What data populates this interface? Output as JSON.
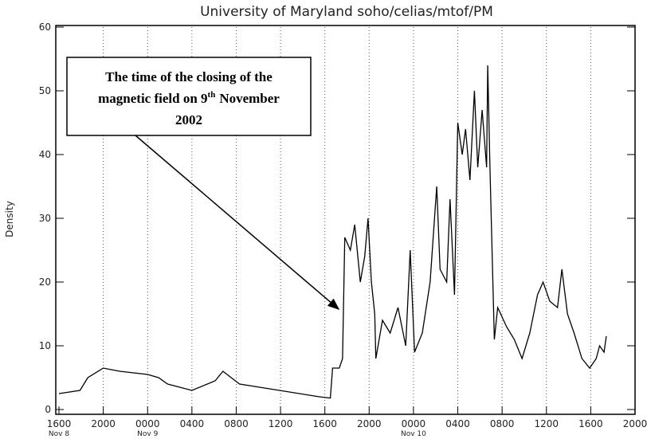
{
  "chart_data": {
    "type": "line",
    "title": "University of Maryland  soho/celias/mtof/PM",
    "y_label": "Density",
    "annotation": {
      "lines": [
        "The time of the closing of the",
        "magnetic field on 9",
        "November",
        "2002"
      ],
      "superscript": "th"
    },
    "color": "#000000",
    "grid": true,
    "xlim": [
      0,
      52
    ],
    "ylim": [
      0,
      60
    ],
    "yticks": [
      0,
      10,
      20,
      30,
      40,
      50,
      60
    ],
    "xticks": [
      {
        "value": 0,
        "label": "1600",
        "date": "Nov 8"
      },
      {
        "value": 4,
        "label": "2000"
      },
      {
        "value": 8,
        "label": "0000",
        "date": "Nov 9"
      },
      {
        "value": 12,
        "label": "0400"
      },
      {
        "value": 16,
        "label": "0800"
      },
      {
        "value": 20,
        "label": "1200"
      },
      {
        "value": 24,
        "label": "1600"
      },
      {
        "value": 28,
        "label": "2000"
      },
      {
        "value": 32,
        "label": "0000",
        "date": "Nov 10"
      },
      {
        "value": 36,
        "label": "0400"
      },
      {
        "value": 40,
        "label": "0800"
      },
      {
        "value": 44,
        "label": "1200"
      },
      {
        "value": 48,
        "label": "1600"
      },
      {
        "value": 52,
        "label": "2000"
      }
    ],
    "x": [
      0,
      1.9,
      2.6,
      4,
      5.5,
      8,
      9,
      9.8,
      12,
      14.1,
      14.8,
      16.3,
      19.9,
      23.5,
      24.5,
      24.7,
      25.3,
      25.6,
      25.8,
      26.3,
      26.7,
      27.2,
      27.6,
      27.9,
      28.2,
      28.5,
      28.6,
      29.2,
      29.9,
      30.6,
      31.3,
      31.7,
      32.1,
      32.8,
      33.5,
      34.1,
      34.4,
      35,
      35.3,
      35.7,
      36,
      36.4,
      36.7,
      37.1,
      37.5,
      37.8,
      38.2,
      38.6,
      38.7,
      38.9,
      39.3,
      39.6,
      40.4,
      41.1,
      41.8,
      42.5,
      43.2,
      43.7,
      44.3,
      45,
      45.4,
      45.9,
      46.5,
      47.2,
      47.9,
      48.5,
      48.8,
      49.2,
      49.4
    ],
    "values": [
      2.5,
      3,
      5,
      6.5,
      6,
      5.5,
      5,
      4,
      3,
      4.5,
      6,
      4,
      3,
      2,
      1.8,
      6.5,
      6.5,
      8,
      27,
      25,
      29,
      20,
      24,
      30,
      20,
      15,
      8,
      14,
      12,
      16,
      10,
      25,
      9,
      12,
      20,
      35,
      22,
      20,
      33,
      18,
      45,
      40,
      44,
      36,
      50,
      38,
      47,
      38,
      54,
      38,
      11,
      16,
      13,
      11,
      8,
      12,
      18,
      20,
      17,
      16,
      22,
      15,
      12,
      8,
      6.5,
      8,
      10,
      9,
      11.5
    ]
  }
}
